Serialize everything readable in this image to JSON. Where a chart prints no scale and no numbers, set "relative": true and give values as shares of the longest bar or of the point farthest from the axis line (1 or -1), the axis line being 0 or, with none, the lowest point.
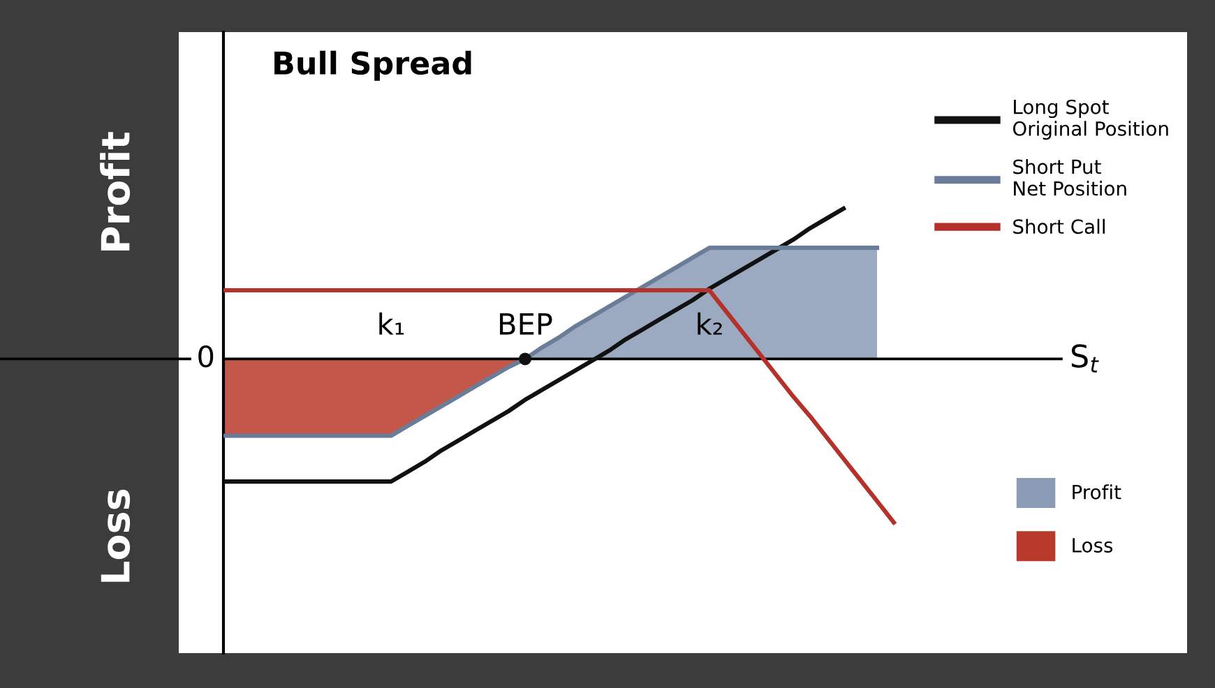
{
  "chart_data": {
    "type": "line",
    "relative": true,
    "title": "Bull Spread",
    "xlabel": "S$_{t}$",
    "categories": [
      null,
      null,
      null,
      null,
      null,
      null,
      null,
      null,
      null,
      null,
      "k₁",
      null,
      null,
      null,
      null,
      null,
      null,
      null,
      "BEP",
      null,
      null,
      null,
      null,
      null,
      null,
      null,
      null,
      null,
      null,
      "k₂",
      null,
      null,
      null,
      null,
      null,
      null,
      null,
      null,
      null,
      null,
      null,
      null,
      null,
      null,
      null,
      null,
      null,
      null,
      null,
      null,
      null
    ],
    "series": [
      {
        "name": "Long Spot\nOriginal Position",
        "color": "#111111",
        "values": [
          -0.75,
          -0.75,
          -0.75,
          -0.75,
          -0.75,
          -0.75,
          -0.75,
          -0.75,
          -0.75,
          -0.75,
          -0.75,
          -0.69,
          -0.63,
          -0.56,
          -0.5,
          -0.44,
          -0.38,
          -0.32,
          -0.25,
          -0.19,
          -0.13,
          -0.07,
          -0.01,
          0.05,
          0.12,
          0.18,
          0.24,
          0.3,
          0.36,
          0.43,
          0.49,
          0.55,
          0.61,
          0.67,
          0.73,
          0.8,
          0.86,
          0.92,
          null,
          null,
          null,
          null,
          null,
          null,
          null,
          null,
          null,
          null,
          null,
          null,
          null
        ]
      },
      {
        "name": "Short Put\nNet Position",
        "color": "#6a7d98",
        "values": [
          -0.47,
          -0.47,
          -0.47,
          -0.47,
          -0.47,
          -0.47,
          -0.47,
          -0.47,
          -0.47,
          -0.47,
          -0.47,
          -0.41,
          -0.35,
          -0.29,
          -0.23,
          -0.17,
          -0.11,
          -0.05,
          0,
          0.07,
          0.13,
          0.2,
          0.26,
          0.32,
          0.38,
          0.44,
          0.5,
          0.56,
          0.62,
          0.68,
          0.68,
          0.68,
          0.68,
          0.68,
          0.68,
          0.68,
          0.68,
          0.68,
          0.68,
          0.68,
          null,
          null,
          null,
          null,
          null,
          null,
          null,
          null,
          null,
          null,
          null
        ]
      },
      {
        "name": "Short Call",
        "color": "#b5312b",
        "values": [
          0.42,
          0.42,
          0.42,
          0.42,
          0.42,
          0.42,
          0.42,
          0.42,
          0.42,
          0.42,
          0.42,
          0.42,
          0.42,
          0.42,
          0.42,
          0.42,
          0.42,
          0.42,
          0.42,
          0.42,
          0.42,
          0.42,
          0.42,
          0.42,
          0.42,
          0.42,
          0.42,
          0.42,
          0.42,
          0.42,
          0.29,
          0.16,
          0.03,
          -0.1,
          -0.23,
          -0.35,
          -0.48,
          -0.61,
          -0.74,
          -0.87,
          -1,
          null,
          null,
          null,
          null,
          null,
          null,
          null,
          null,
          null,
          null
        ]
      },
      {
        "name": "Profit",
        "type": "area",
        "color": "#8a9bb5",
        "values": [
          null,
          null,
          null,
          null,
          null,
          null,
          null,
          null,
          null,
          null,
          null,
          null,
          null,
          null,
          null,
          null,
          null,
          null,
          0,
          0.07,
          0.13,
          0.2,
          0.26,
          0.32,
          0.38,
          0.44,
          0.5,
          0.56,
          0.62,
          0.68,
          0.68,
          0.68,
          0.68,
          0.68,
          0.68,
          0.68,
          0.68,
          0.68,
          0.68,
          0.68,
          null,
          null,
          null,
          null,
          null,
          null,
          null,
          null,
          null,
          null,
          null
        ]
      },
      {
        "name": "Loss",
        "type": "area",
        "color": "#b83a2a",
        "values": [
          -0.47,
          -0.47,
          -0.47,
          -0.47,
          -0.47,
          -0.47,
          -0.47,
          -0.47,
          -0.47,
          -0.47,
          -0.47,
          -0.41,
          -0.35,
          -0.29,
          -0.23,
          -0.17,
          -0.11,
          -0.05,
          0,
          null,
          null,
          null,
          null,
          null,
          null,
          null,
          null,
          null,
          null,
          null,
          null,
          null,
          null,
          null,
          null,
          null,
          null,
          null,
          null,
          null,
          null,
          null,
          null,
          null,
          null,
          null,
          null,
          null,
          null,
          null,
          null
        ]
      },
      {
        "type": "scatter",
        "marker": "circle",
        "color": "#111111",
        "values": [
          null,
          null,
          null,
          null,
          null,
          null,
          null,
          null,
          null,
          null,
          null,
          null,
          null,
          null,
          null,
          null,
          null,
          null,
          0,
          null,
          null,
          null,
          null,
          null,
          null,
          null,
          null,
          null,
          null,
          null,
          null,
          null,
          null,
          null,
          null,
          null,
          null,
          null,
          null,
          null,
          null,
          null,
          null,
          null,
          null,
          null,
          null,
          null,
          null,
          null,
          null
        ]
      }
    ],
    "annotations": [
      "0",
      "Profit",
      "Loss"
    ],
    "grid": false,
    "legend": "right",
    "marker": "none",
    "line_style": "solid"
  }
}
